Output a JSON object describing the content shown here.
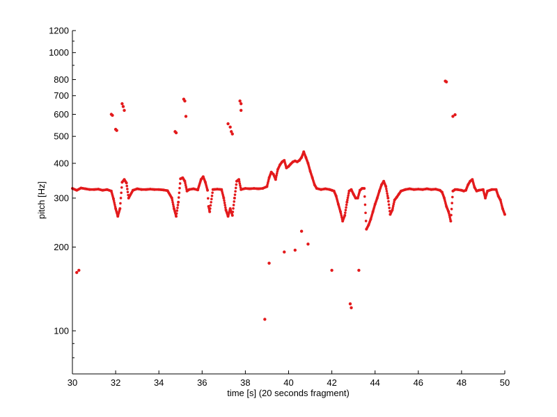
{
  "chart_data": {
    "type": "scatter",
    "title": "",
    "xlabel": "time [s] (20 seconds fragment)",
    "ylabel": "pitch [Hz]",
    "xlim": [
      30,
      50
    ],
    "ylim": [
      70,
      1200
    ],
    "yscale": "log",
    "grid": false,
    "marker_color": "#e31a1c",
    "x_ticks": [
      30,
      32,
      34,
      36,
      38,
      40,
      42,
      44,
      46,
      48,
      50
    ],
    "y_ticks": [
      100,
      200,
      300,
      400,
      500,
      600,
      700,
      800,
      1000,
      1200
    ],
    "contour": [
      [
        30.0,
        325
      ],
      [
        30.2,
        320
      ],
      [
        30.4,
        326
      ],
      [
        30.6,
        324
      ],
      [
        30.8,
        322
      ],
      [
        31.0,
        322
      ],
      [
        31.2,
        323
      ],
      [
        31.4,
        320
      ],
      [
        31.6,
        322
      ],
      [
        31.8,
        318
      ],
      [
        31.9,
        298
      ],
      [
        32.0,
        275
      ],
      [
        32.1,
        258
      ],
      [
        32.2,
        275
      ],
      [
        32.3,
        342
      ],
      [
        32.4,
        350
      ],
      [
        32.5,
        340
      ],
      [
        32.6,
        300
      ],
      [
        32.8,
        320
      ],
      [
        33.0,
        324
      ],
      [
        33.2,
        322
      ],
      [
        33.4,
        322
      ],
      [
        33.6,
        323
      ],
      [
        33.8,
        322
      ],
      [
        34.0,
        322
      ],
      [
        34.2,
        321
      ],
      [
        34.4,
        319
      ],
      [
        34.6,
        300
      ],
      [
        34.7,
        275
      ],
      [
        34.8,
        258
      ],
      [
        34.9,
        290
      ],
      [
        35.0,
        352
      ],
      [
        35.1,
        355
      ],
      [
        35.2,
        345
      ],
      [
        35.3,
        318
      ],
      [
        35.4,
        322
      ],
      [
        35.6,
        324
      ],
      [
        35.8,
        321
      ],
      [
        35.95,
        350
      ],
      [
        36.05,
        358
      ],
      [
        36.15,
        342
      ],
      [
        36.25,
        320
      ],
      [
        36.3,
        280
      ],
      [
        36.35,
        268
      ],
      [
        36.5,
        322
      ],
      [
        36.7,
        323
      ],
      [
        36.9,
        322
      ],
      [
        37.0,
        300
      ],
      [
        37.1,
        272
      ],
      [
        37.2,
        258
      ],
      [
        37.3,
        275
      ],
      [
        37.4,
        260
      ],
      [
        37.5,
        300
      ],
      [
        37.6,
        345
      ],
      [
        37.7,
        350
      ],
      [
        37.8,
        322
      ],
      [
        38.0,
        325
      ],
      [
        38.2,
        324
      ],
      [
        38.4,
        325
      ],
      [
        38.6,
        324
      ],
      [
        38.8,
        325
      ],
      [
        39.0,
        330
      ],
      [
        39.1,
        355
      ],
      [
        39.2,
        372
      ],
      [
        39.3,
        365
      ],
      [
        39.4,
        350
      ],
      [
        39.5,
        380
      ],
      [
        39.6,
        395
      ],
      [
        39.7,
        405
      ],
      [
        39.8,
        410
      ],
      [
        39.9,
        385
      ],
      [
        40.0,
        390
      ],
      [
        40.1,
        398
      ],
      [
        40.2,
        405
      ],
      [
        40.3,
        408
      ],
      [
        40.4,
        405
      ],
      [
        40.5,
        410
      ],
      [
        40.6,
        420
      ],
      [
        40.7,
        440
      ],
      [
        40.8,
        420
      ],
      [
        40.9,
        400
      ],
      [
        41.0,
        375
      ],
      [
        41.1,
        355
      ],
      [
        41.2,
        335
      ],
      [
        41.3,
        325
      ],
      [
        41.5,
        322
      ],
      [
        41.7,
        324
      ],
      [
        41.9,
        322
      ],
      [
        42.0,
        320
      ],
      [
        42.1,
        318
      ],
      [
        42.2,
        305
      ],
      [
        42.3,
        285
      ],
      [
        42.4,
        268
      ],
      [
        42.5,
        248
      ],
      [
        42.6,
        260
      ],
      [
        42.7,
        290
      ],
      [
        42.8,
        318
      ],
      [
        42.9,
        322
      ],
      [
        43.0,
        310
      ],
      [
        43.1,
        300
      ],
      [
        43.2,
        300
      ],
      [
        43.3,
        320
      ],
      [
        43.4,
        325
      ],
      [
        43.5,
        325
      ],
      [
        43.6,
        232
      ],
      [
        43.7,
        240
      ],
      [
        43.8,
        252
      ],
      [
        43.9,
        268
      ],
      [
        44.0,
        285
      ],
      [
        44.1,
        300
      ],
      [
        44.2,
        318
      ],
      [
        44.3,
        335
      ],
      [
        44.4,
        345
      ],
      [
        44.5,
        330
      ],
      [
        44.6,
        300
      ],
      [
        44.7,
        262
      ],
      [
        44.8,
        272
      ],
      [
        44.9,
        295
      ],
      [
        45.0,
        302
      ],
      [
        45.1,
        310
      ],
      [
        45.2,
        318
      ],
      [
        45.4,
        322
      ],
      [
        45.6,
        324
      ],
      [
        45.8,
        322
      ],
      [
        46.0,
        323
      ],
      [
        46.2,
        322
      ],
      [
        46.4,
        324
      ],
      [
        46.6,
        322
      ],
      [
        46.8,
        323
      ],
      [
        47.0,
        320
      ],
      [
        47.1,
        315
      ],
      [
        47.2,
        300
      ],
      [
        47.3,
        280
      ],
      [
        47.4,
        268
      ],
      [
        47.5,
        248
      ],
      [
        47.6,
        318
      ],
      [
        47.7,
        322
      ],
      [
        47.8,
        322
      ],
      [
        48.0,
        320
      ],
      [
        48.1,
        318
      ],
      [
        48.2,
        320
      ],
      [
        48.3,
        335
      ],
      [
        48.4,
        345
      ],
      [
        48.5,
        350
      ],
      [
        48.6,
        328
      ],
      [
        48.7,
        318
      ],
      [
        48.8,
        320
      ],
      [
        49.0,
        322
      ],
      [
        49.1,
        300
      ],
      [
        49.2,
        318
      ],
      [
        49.4,
        322
      ],
      [
        49.6,
        322
      ],
      [
        49.7,
        305
      ],
      [
        49.8,
        295
      ],
      [
        49.9,
        275
      ],
      [
        50.0,
        262
      ]
    ],
    "outliers": [
      [
        30.2,
        162
      ],
      [
        30.3,
        165
      ],
      [
        31.8,
        600
      ],
      [
        31.85,
        595
      ],
      [
        32.0,
        530
      ],
      [
        32.05,
        525
      ],
      [
        32.3,
        655
      ],
      [
        32.35,
        640
      ],
      [
        32.4,
        620
      ],
      [
        34.75,
        520
      ],
      [
        34.8,
        515
      ],
      [
        35.15,
        680
      ],
      [
        35.2,
        670
      ],
      [
        35.25,
        590
      ],
      [
        37.2,
        555
      ],
      [
        37.3,
        540
      ],
      [
        37.35,
        520
      ],
      [
        37.4,
        510
      ],
      [
        37.75,
        670
      ],
      [
        37.8,
        655
      ],
      [
        37.8,
        620
      ],
      [
        38.9,
        110
      ],
      [
        39.1,
        175
      ],
      [
        39.8,
        192
      ],
      [
        40.3,
        195
      ],
      [
        40.6,
        228
      ],
      [
        40.9,
        205
      ],
      [
        42.0,
        165
      ],
      [
        42.85,
        125
      ],
      [
        42.9,
        121
      ],
      [
        43.25,
        165
      ],
      [
        47.25,
        790
      ],
      [
        47.3,
        785
      ],
      [
        47.6,
        590
      ],
      [
        47.7,
        598
      ]
    ]
  }
}
